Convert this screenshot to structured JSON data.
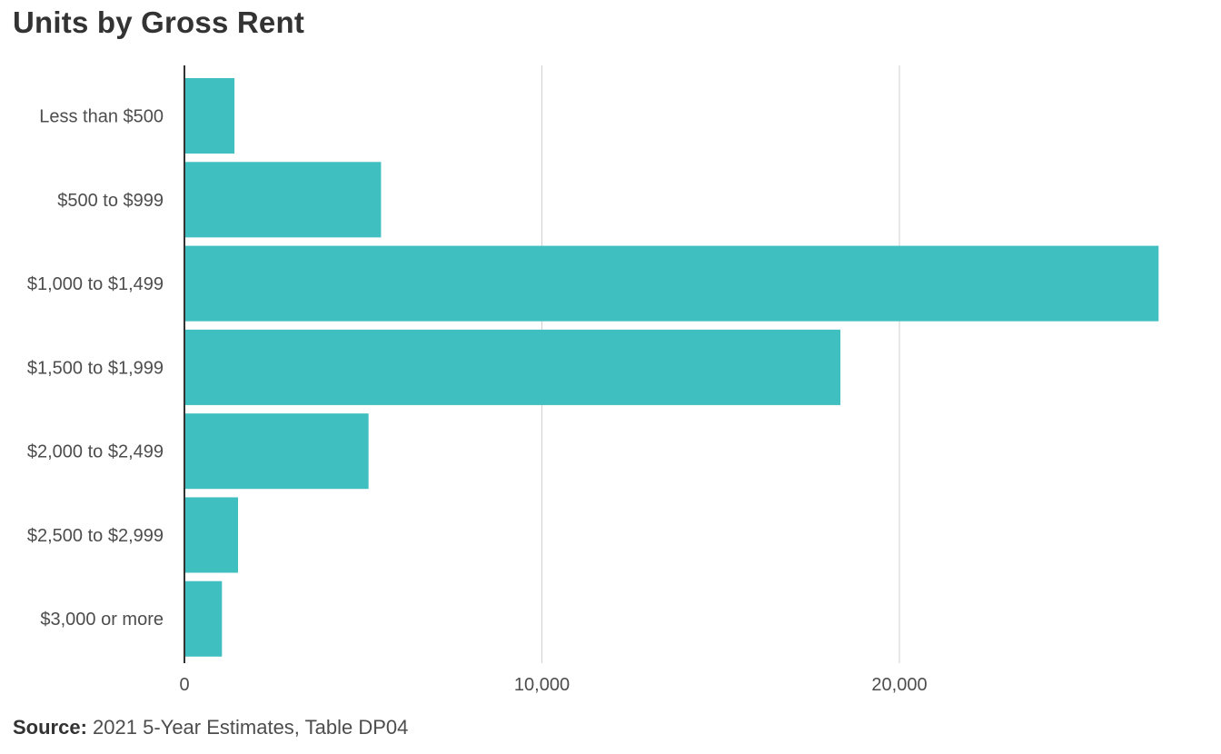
{
  "chart_data": {
    "type": "bar",
    "orientation": "horizontal",
    "title": "Units by Gross Rent",
    "categories": [
      "Less than $500",
      "$500 to $999",
      "$1,000 to $1,499",
      "$1,500 to $1,999",
      "$2,000 to $2,499",
      "$2,500 to $2,999",
      "$3,000 or more"
    ],
    "values": [
      1400,
      5500,
      27250,
      18350,
      5150,
      1500,
      1050
    ],
    "xlim": [
      0,
      28000
    ],
    "xticks": [
      0,
      10000,
      20000
    ],
    "xtick_labels": [
      "0",
      "10,000",
      "20,000"
    ],
    "grid": "vertical",
    "bar_color": "#40bfc1"
  },
  "source": {
    "label": "Source:",
    "text": "2021 5-Year Estimates,  Table DP04"
  }
}
